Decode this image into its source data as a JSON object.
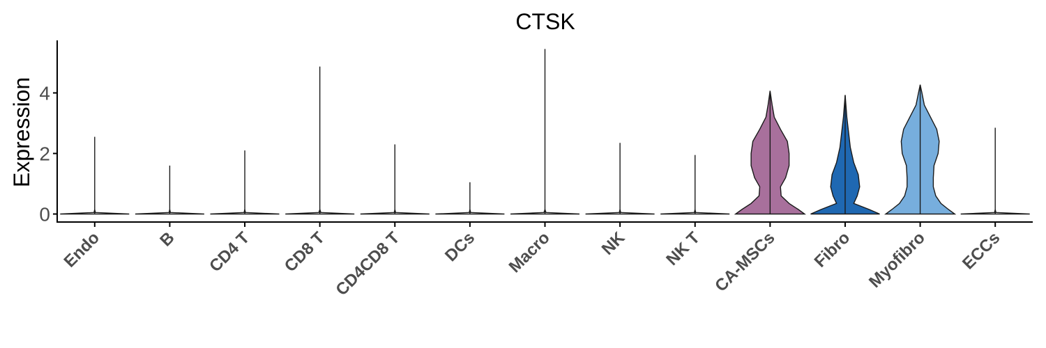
{
  "chart_data": {
    "type": "violin",
    "title": "CTSK",
    "ylabel": "Expression",
    "xlabel": "",
    "ylim": [
      -0.25,
      5.6
    ],
    "yticks": [
      0,
      2,
      4
    ],
    "legend": "none",
    "grid": false,
    "categories": [
      "Endo",
      "B",
      "CD4 T",
      "CD8 T",
      "CD4CD8 T",
      "DCs",
      "Macro",
      "NK",
      "NK T",
      "CA-MSCs",
      "Fibro",
      "Myofibro",
      "ECCs"
    ],
    "violins": [
      {
        "category": "Endo",
        "max": 2.55,
        "color": "#ffffff",
        "profile": [
          [
            0,
            1
          ],
          [
            0.05,
            0.02
          ],
          [
            0.15,
            0.0
          ]
        ]
      },
      {
        "category": "B",
        "max": 1.6,
        "color": "#ffffff",
        "profile": [
          [
            0,
            1
          ],
          [
            0.05,
            0.02
          ],
          [
            0.15,
            0.0
          ]
        ]
      },
      {
        "category": "CD4 T",
        "max": 2.1,
        "color": "#ffffff",
        "profile": [
          [
            0,
            1
          ],
          [
            0.05,
            0.02
          ],
          [
            0.15,
            0.0
          ]
        ]
      },
      {
        "category": "CD8 T",
        "max": 4.87,
        "color": "#ffffff",
        "profile": [
          [
            0,
            1
          ],
          [
            0.05,
            0.03
          ],
          [
            0.15,
            0.0
          ]
        ]
      },
      {
        "category": "CD4CD8 T",
        "max": 2.3,
        "color": "#ffffff",
        "profile": [
          [
            0,
            1
          ],
          [
            0.05,
            0.02
          ],
          [
            0.15,
            0.0
          ]
        ]
      },
      {
        "category": "DCs",
        "max": 1.05,
        "color": "#ffffff",
        "profile": [
          [
            0,
            1
          ],
          [
            0.05,
            0.02
          ],
          [
            0.15,
            0.0
          ]
        ]
      },
      {
        "category": "Macro",
        "max": 5.45,
        "color": "#ffffff",
        "profile": [
          [
            0,
            1
          ],
          [
            0.05,
            0.03
          ],
          [
            0.15,
            0.0
          ]
        ]
      },
      {
        "category": "NK",
        "max": 2.35,
        "color": "#ffffff",
        "profile": [
          [
            0,
            1
          ],
          [
            0.05,
            0.02
          ],
          [
            0.15,
            0.0
          ]
        ]
      },
      {
        "category": "NK T",
        "max": 1.95,
        "color": "#ffffff",
        "profile": [
          [
            0,
            1
          ],
          [
            0.05,
            0.02
          ],
          [
            0.15,
            0.0
          ]
        ]
      },
      {
        "category": "CA-MSCs",
        "max": 4.07,
        "color": "#a8709c",
        "profile": [
          [
            0,
            1
          ],
          [
            0.15,
            0.82
          ],
          [
            0.35,
            0.55
          ],
          [
            0.6,
            0.32
          ],
          [
            0.9,
            0.3
          ],
          [
            1.2,
            0.45
          ],
          [
            1.6,
            0.55
          ],
          [
            2.0,
            0.55
          ],
          [
            2.4,
            0.5
          ],
          [
            2.8,
            0.3
          ],
          [
            3.2,
            0.12
          ],
          [
            3.6,
            0.06
          ],
          [
            4.07,
            0.0
          ]
        ]
      },
      {
        "category": "Fibro",
        "max": 3.93,
        "color": "#1f68b2",
        "profile": [
          [
            0,
            1
          ],
          [
            0.15,
            0.7
          ],
          [
            0.35,
            0.25
          ],
          [
            0.6,
            0.35
          ],
          [
            0.9,
            0.42
          ],
          [
            1.3,
            0.38
          ],
          [
            1.7,
            0.25
          ],
          [
            2.2,
            0.15
          ],
          [
            2.7,
            0.1
          ],
          [
            3.2,
            0.05
          ],
          [
            3.93,
            0.0
          ]
        ]
      },
      {
        "category": "Myofibro",
        "max": 4.27,
        "color": "#77aedd",
        "profile": [
          [
            0,
            1
          ],
          [
            0.15,
            0.82
          ],
          [
            0.35,
            0.6
          ],
          [
            0.6,
            0.45
          ],
          [
            0.9,
            0.38
          ],
          [
            1.2,
            0.38
          ],
          [
            1.6,
            0.4
          ],
          [
            2.0,
            0.52
          ],
          [
            2.4,
            0.55
          ],
          [
            2.8,
            0.48
          ],
          [
            3.2,
            0.3
          ],
          [
            3.6,
            0.12
          ],
          [
            4.0,
            0.05
          ],
          [
            4.27,
            0.0
          ]
        ]
      },
      {
        "category": "ECCs",
        "max": 2.85,
        "color": "#ffffff",
        "profile": [
          [
            0,
            1
          ],
          [
            0.05,
            0.02
          ],
          [
            0.15,
            0.0
          ]
        ]
      }
    ]
  }
}
